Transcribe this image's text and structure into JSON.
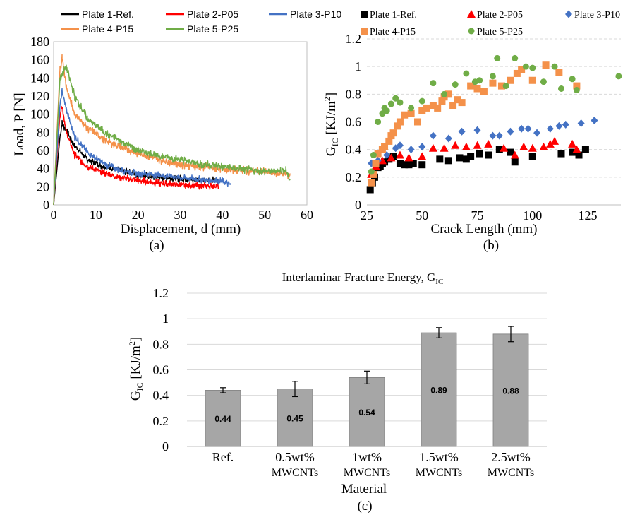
{
  "figure": {
    "caption_a": "(a)",
    "caption_b": "(b)",
    "caption_c": "(c)"
  },
  "colors": {
    "plate1": "#000000",
    "plate2": "#ff0000",
    "plate3": "#4472c4",
    "plate4": "#f4914a",
    "plate5": "#70ad47",
    "bar": "#a6a6a6",
    "grid": "#d9d9d9"
  },
  "chart_data": [
    {
      "id": "a",
      "type": "line",
      "xlabel": "Displacement, d (mm)",
      "ylabel": "Load, P [N]",
      "xlim": [
        0,
        60
      ],
      "ylim": [
        0,
        180
      ],
      "xticks": [
        0,
        10,
        20,
        30,
        40,
        50,
        60
      ],
      "yticks": [
        0,
        20,
        40,
        60,
        80,
        100,
        120,
        140,
        160,
        180
      ],
      "grid": false,
      "legend_position": "top",
      "series": [
        {
          "name": "Plate 1-Ref.",
          "color": "#000000",
          "noise": 5,
          "points": [
            [
              0,
              0
            ],
            [
              1.5,
              75
            ],
            [
              2,
              90
            ],
            [
              3,
              82
            ],
            [
              5,
              65
            ],
            [
              8,
              50
            ],
            [
              12,
              42
            ],
            [
              16,
              38
            ],
            [
              20,
              33
            ],
            [
              25,
              30
            ],
            [
              30,
              29
            ],
            [
              35,
              27
            ],
            [
              39,
              27
            ]
          ]
        },
        {
          "name": "Plate 2-P05",
          "color": "#ff0000",
          "noise": 5,
          "points": [
            [
              0,
              0
            ],
            [
              1.5,
              100
            ],
            [
              2,
              110
            ],
            [
              3,
              80
            ],
            [
              5,
              55
            ],
            [
              8,
              42
            ],
            [
              12,
              35
            ],
            [
              16,
              30
            ],
            [
              20,
              27
            ],
            [
              25,
              24
            ],
            [
              30,
              22
            ],
            [
              35,
              21
            ],
            [
              39,
              21
            ]
          ]
        },
        {
          "name": "Plate 3-P10",
          "color": "#4472c4",
          "noise": 5,
          "points": [
            [
              0,
              0
            ],
            [
              1.5,
              110
            ],
            [
              2,
              125
            ],
            [
              3,
              105
            ],
            [
              5,
              75
            ],
            [
              8,
              58
            ],
            [
              12,
              45
            ],
            [
              16,
              38
            ],
            [
              20,
              35
            ],
            [
              25,
              33
            ],
            [
              30,
              30
            ],
            [
              35,
              28
            ],
            [
              40,
              26
            ],
            [
              42,
              22
            ]
          ]
        },
        {
          "name": "Plate 4-P15",
          "color": "#f4914a",
          "noise": 6,
          "points": [
            [
              0,
              0
            ],
            [
              1.5,
              150
            ],
            [
              2,
              162
            ],
            [
              3,
              130
            ],
            [
              5,
              100
            ],
            [
              8,
              85
            ],
            [
              12,
              72
            ],
            [
              16,
              63
            ],
            [
              20,
              57
            ],
            [
              25,
              50
            ],
            [
              30,
              45
            ],
            [
              35,
              42
            ],
            [
              40,
              40
            ],
            [
              45,
              38
            ],
            [
              50,
              36
            ],
            [
              55,
              34
            ],
            [
              56,
              32
            ]
          ]
        },
        {
          "name": "Plate 5-P25",
          "color": "#70ad47",
          "noise": 6,
          "points": [
            [
              0,
              0
            ],
            [
              1.5,
              140
            ],
            [
              3,
              152
            ],
            [
              5,
              120
            ],
            [
              8,
              95
            ],
            [
              12,
              80
            ],
            [
              16,
              70
            ],
            [
              20,
              60
            ],
            [
              25,
              54
            ],
            [
              30,
              50
            ],
            [
              35,
              45
            ],
            [
              40,
              42
            ],
            [
              45,
              39
            ],
            [
              50,
              37
            ],
            [
              55,
              38
            ],
            [
              56,
              28
            ]
          ]
        }
      ]
    },
    {
      "id": "b",
      "type": "scatter",
      "xlabel": "Crack Length (mm)",
      "ylabel": "G_IC [KJ/m²]",
      "xlim": [
        25,
        140
      ],
      "ylim": [
        0,
        1.2
      ],
      "xticks": [
        25,
        50,
        75,
        100,
        125
      ],
      "yticks": [
        0,
        0.2,
        0.4,
        0.6,
        0.8,
        1,
        1.2
      ],
      "grid": true,
      "legend_position": "top",
      "series": [
        {
          "name": "Plate 1-Ref.",
          "marker": "square",
          "color": "#000000",
          "points": [
            [
              26.5,
              0.11
            ],
            [
              27.5,
              0.16
            ],
            [
              28.5,
              0.2
            ],
            [
              30,
              0.27
            ],
            [
              31,
              0.28
            ],
            [
              32,
              0.3
            ],
            [
              33,
              0.31
            ],
            [
              35,
              0.33
            ],
            [
              37,
              0.35
            ],
            [
              40,
              0.3
            ],
            [
              42,
              0.29
            ],
            [
              44,
              0.29
            ],
            [
              46,
              0.3
            ],
            [
              50,
              0.29
            ],
            [
              58,
              0.33
            ],
            [
              62,
              0.32
            ],
            [
              67,
              0.34
            ],
            [
              70,
              0.33
            ],
            [
              72,
              0.35
            ],
            [
              76,
              0.37
            ],
            [
              80,
              0.36
            ],
            [
              85,
              0.4
            ],
            [
              90,
              0.38
            ],
            [
              92,
              0.31
            ],
            [
              100,
              0.35
            ],
            [
              113,
              0.37
            ],
            [
              118,
              0.38
            ],
            [
              121,
              0.36
            ],
            [
              124,
              0.4
            ]
          ]
        },
        {
          "name": "Plate 2-P05",
          "marker": "triangle",
          "color": "#ff0000",
          "points": [
            [
              27,
              0.22
            ],
            [
              29,
              0.28
            ],
            [
              32,
              0.32
            ],
            [
              36,
              0.34
            ],
            [
              40,
              0.36
            ],
            [
              44,
              0.34
            ],
            [
              50,
              0.35
            ],
            [
              55,
              0.41
            ],
            [
              60,
              0.41
            ],
            [
              65,
              0.43
            ],
            [
              70,
              0.42
            ],
            [
              75,
              0.43
            ],
            [
              80,
              0.44
            ],
            [
              87,
              0.41
            ],
            [
              92,
              0.36
            ],
            [
              96,
              0.42
            ],
            [
              100,
              0.41
            ],
            [
              105,
              0.42
            ],
            [
              108,
              0.44
            ],
            [
              110,
              0.46
            ],
            [
              118,
              0.44
            ],
            [
              120,
              0.4
            ]
          ]
        },
        {
          "name": "Plate 3-P10",
          "marker": "diamond",
          "color": "#4472c4",
          "points": [
            [
              27,
              0.3
            ],
            [
              30,
              0.32
            ],
            [
              34,
              0.36
            ],
            [
              38,
              0.41
            ],
            [
              40,
              0.43
            ],
            [
              45,
              0.4
            ],
            [
              50,
              0.42
            ],
            [
              55,
              0.5
            ],
            [
              62,
              0.48
            ],
            [
              68,
              0.53
            ],
            [
              75,
              0.54
            ],
            [
              82,
              0.5
            ],
            [
              85,
              0.5
            ],
            [
              90,
              0.53
            ],
            [
              95,
              0.55
            ],
            [
              98,
              0.55
            ],
            [
              102,
              0.52
            ],
            [
              108,
              0.55
            ],
            [
              112,
              0.57
            ],
            [
              115,
              0.58
            ],
            [
              122,
              0.59
            ],
            [
              128,
              0.61
            ]
          ]
        },
        {
          "name": "Plate 4-P15",
          "marker": "square",
          "color": "#f4914a",
          "points": [
            [
              27,
              0.16
            ],
            [
              28,
              0.22
            ],
            [
              29,
              0.3
            ],
            [
              30,
              0.37
            ],
            [
              32,
              0.4
            ],
            [
              33,
              0.42
            ],
            [
              35,
              0.46
            ],
            [
              36,
              0.5
            ],
            [
              37,
              0.52
            ],
            [
              39,
              0.57
            ],
            [
              40,
              0.6
            ],
            [
              42,
              0.65
            ],
            [
              45,
              0.66
            ],
            [
              48,
              0.6
            ],
            [
              50,
              0.68
            ],
            [
              52,
              0.7
            ],
            [
              55,
              0.72
            ],
            [
              57,
              0.7
            ],
            [
              59,
              0.75
            ],
            [
              60,
              0.78
            ],
            [
              62,
              0.8
            ],
            [
              64,
              0.72
            ],
            [
              66,
              0.76
            ],
            [
              68,
              0.74
            ],
            [
              72,
              0.86
            ],
            [
              75,
              0.84
            ],
            [
              78,
              0.82
            ],
            [
              82,
              0.88
            ],
            [
              86,
              0.86
            ],
            [
              90,
              0.9
            ],
            [
              93,
              0.95
            ],
            [
              95,
              0.98
            ],
            [
              100,
              0.9
            ],
            [
              106,
              1.01
            ],
            [
              112,
              0.96
            ],
            [
              120,
              0.86
            ]
          ]
        },
        {
          "name": "Plate 5-P25",
          "marker": "circle",
          "color": "#70ad47",
          "points": [
            [
              27,
              0.24
            ],
            [
              28,
              0.36
            ],
            [
              30,
              0.6
            ],
            [
              32,
              0.66
            ],
            [
              33,
              0.7
            ],
            [
              34,
              0.68
            ],
            [
              36,
              0.73
            ],
            [
              38,
              0.77
            ],
            [
              40,
              0.74
            ],
            [
              45,
              0.7
            ],
            [
              50,
              0.75
            ],
            [
              55,
              0.88
            ],
            [
              60,
              0.8
            ],
            [
              65,
              0.87
            ],
            [
              70,
              0.95
            ],
            [
              74,
              0.89
            ],
            [
              76,
              0.9
            ],
            [
              82,
              0.93
            ],
            [
              84,
              1.06
            ],
            [
              88,
              0.86
            ],
            [
              92,
              1.06
            ],
            [
              97,
              1.0
            ],
            [
              100,
              0.99
            ],
            [
              105,
              0.89
            ],
            [
              110,
              1.0
            ],
            [
              113,
              0.84
            ],
            [
              118,
              0.91
            ],
            [
              120,
              0.83
            ],
            [
              139,
              0.93
            ]
          ]
        }
      ]
    },
    {
      "id": "c",
      "type": "bar",
      "title_main": "Interlaminar Fracture Energy, G",
      "title_sub": "IC",
      "xlabel": "Material",
      "ylabel": "G_IC [KJ/m²]",
      "ylim": [
        0,
        1.2
      ],
      "yticks": [
        0,
        0.2,
        0.4,
        0.6,
        0.8,
        1,
        1.2
      ],
      "grid": true,
      "categories": [
        {
          "line1": "Ref.",
          "line2": ""
        },
        {
          "line1": "0.5wt%",
          "line2": "MWCNTs"
        },
        {
          "line1": "1wt%",
          "line2": "MWCNTs"
        },
        {
          "line1": "1.5wt%",
          "line2": "MWCNTs"
        },
        {
          "line1": "2.5wt%",
          "line2": "MWCNTs"
        }
      ],
      "values": [
        0.44,
        0.45,
        0.54,
        0.89,
        0.88
      ],
      "labels": [
        "0.44",
        "0.45",
        "0.54",
        "0.89",
        "0.88"
      ],
      "errors": [
        0.02,
        0.06,
        0.05,
        0.04,
        0.06
      ]
    }
  ]
}
